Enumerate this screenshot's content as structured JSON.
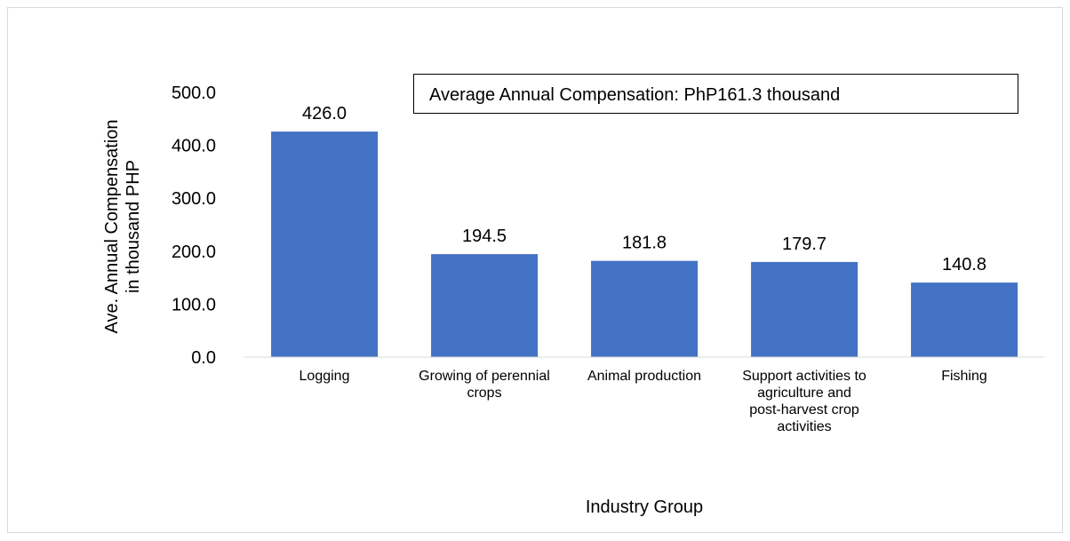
{
  "chart_data": {
    "type": "bar",
    "categories": [
      "Logging",
      "Growing of perennial crops",
      "Animal production",
      "Support activities to agriculture and post-harvest crop activities",
      "Fishing"
    ],
    "values": [
      426.0,
      194.5,
      181.8,
      179.7,
      140.8
    ],
    "value_labels": [
      "426.0",
      "194.5",
      "181.8",
      "179.7",
      "140.8"
    ],
    "color": "#4472c4",
    "ylim": [
      0,
      500
    ],
    "yticks": [
      {
        "value": 0,
        "label": "0.0"
      },
      {
        "value": 100,
        "label": "100.0"
      },
      {
        "value": 200,
        "label": "200.0"
      },
      {
        "value": 300,
        "label": "300.0"
      },
      {
        "value": 400,
        "label": "400.0"
      },
      {
        "value": 500,
        "label": "500.0"
      }
    ],
    "grid": false,
    "xlabel": "Industry Group",
    "ylabel": [
      "Ave. Annual Compensation",
      "in thousand PHP"
    ],
    "annotation": "Average Annual Compensation: PhP161.3 thousand"
  }
}
